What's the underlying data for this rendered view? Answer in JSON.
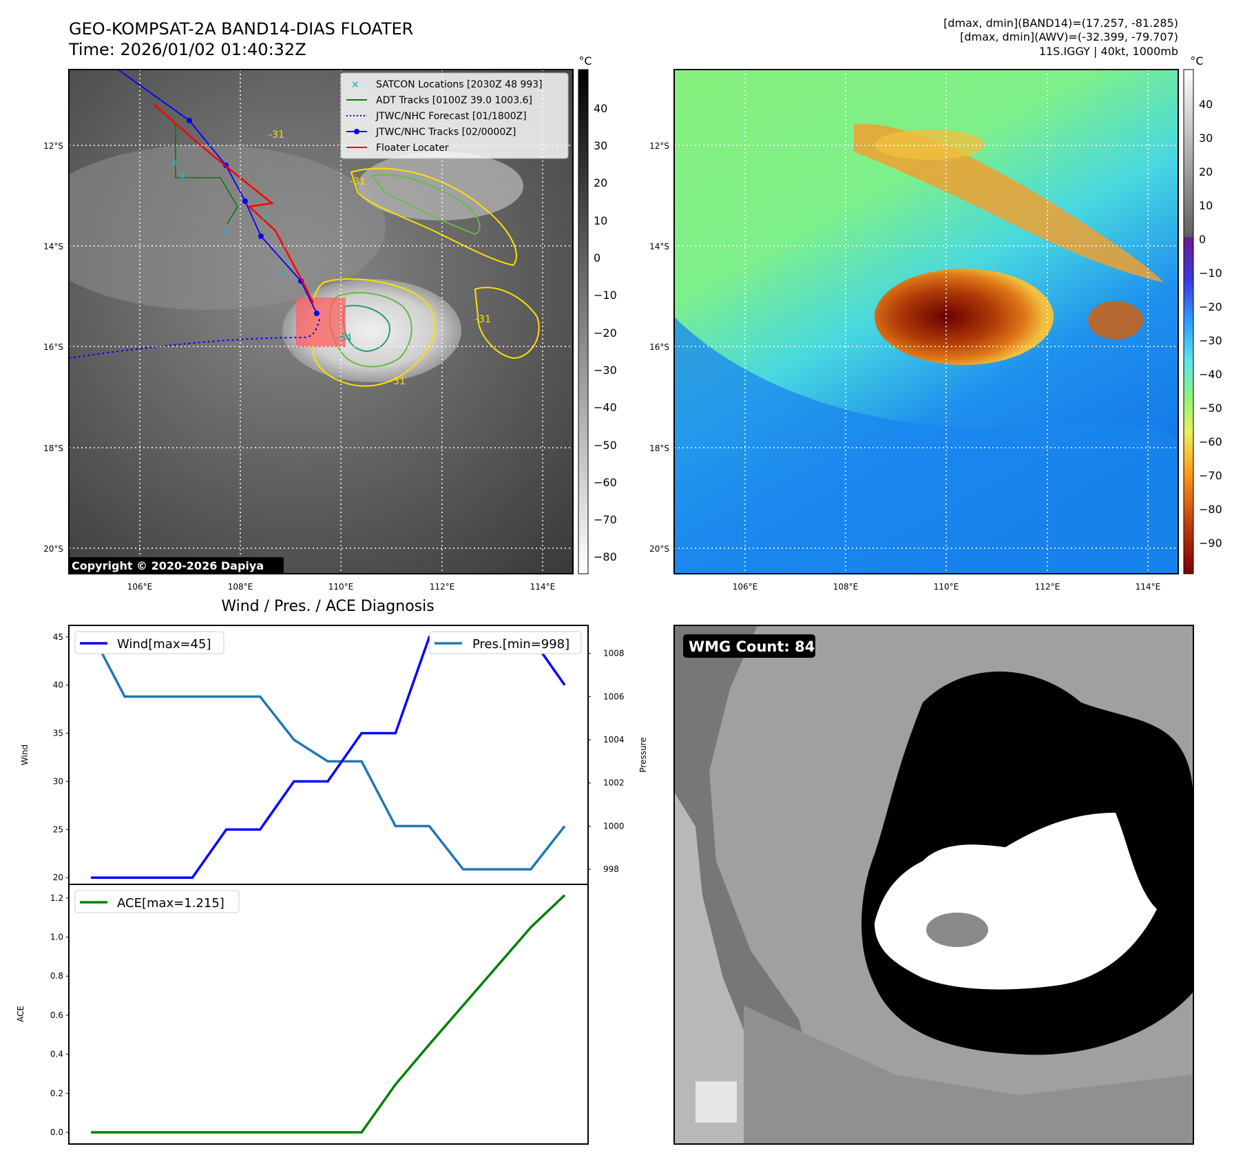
{
  "header": {
    "title_line1": "GEO-KOMPSAT-2A BAND14-DIAS FLOATER",
    "title_line2": "Time: 2026/01/02 01:40:32Z",
    "info_line1": "[dmax, dmin](BAND14)=(17.257, -81.285)",
    "info_line2": "[dmax, dmin](AWV)=(-32.399, -79.707)",
    "info_line3": "11S.IGGY | 40kt, 1000mb"
  },
  "ir_panel": {
    "copyright": "Copyright © 2020-2026 Dapiya",
    "unit": "°C",
    "colorbar_ticks": [
      "40",
      "30",
      "20",
      "10",
      "0",
      "−10",
      "−20",
      "−30",
      "−40",
      "−50",
      "−60",
      "−70",
      "−80"
    ],
    "lat_labels": [
      "12°S",
      "14°S",
      "16°S",
      "18°S",
      "20°S"
    ],
    "lon_labels": [
      "106°E",
      "108°E",
      "110°E",
      "112°E",
      "114°E"
    ],
    "contour_labels": [
      "-31",
      "-31",
      "-31",
      "-64",
      "-31"
    ],
    "legend": [
      {
        "label": "SATCON Locations [2030Z 48 993]",
        "color": "#17becf"
      },
      {
        "label": "ADT Tracks [0100Z 39.0 1003.6]",
        "color": "#008000"
      },
      {
        "label": "JTWC/NHC Forecast [01/1800Z]",
        "color": "#0000ff"
      },
      {
        "label": "JTWC/NHC Tracks [02/0000Z]",
        "color": "#0000ff"
      },
      {
        "label": "Floater Locater",
        "color": "#ff0000"
      }
    ]
  },
  "wv_panel": {
    "unit": "°C",
    "colorbar_ticks": [
      "40",
      "30",
      "20",
      "10",
      "0",
      "−10",
      "−20",
      "−30",
      "−40",
      "−50",
      "−60",
      "−70",
      "−80",
      "−90"
    ],
    "lat_labels": [
      "12°S",
      "14°S",
      "16°S",
      "18°S",
      "20°S"
    ],
    "lon_labels": [
      "106°E",
      "108°E",
      "110°E",
      "112°E",
      "114°E"
    ]
  },
  "diag": {
    "title": "Wind / Pres. / ACE Diagnosis",
    "wmg_label": "WMG Count: 84"
  },
  "chart_data": [
    {
      "type": "line",
      "title": "Wind / Pres. / ACE Diagnosis",
      "ylabel": "Wind",
      "y2label": "Pressure",
      "x": [
        0,
        1,
        2,
        3,
        4,
        5,
        6,
        7,
        8,
        9,
        10,
        11,
        12,
        13,
        14
      ],
      "series": [
        {
          "name": "Wind[max=45]",
          "axis": "left",
          "color": "#0000ff",
          "values": [
            20,
            20,
            20,
            20,
            25,
            25,
            30,
            30,
            35,
            35,
            45,
            45,
            45,
            45,
            40
          ]
        },
        {
          "name": "Pres.[min=998]",
          "axis": "right",
          "color": "#1f77b4",
          "values": [
            1009,
            1006,
            1006,
            1006,
            1006,
            1006,
            1004,
            1003,
            1003,
            1000,
            1000,
            998,
            998,
            998,
            1000
          ]
        }
      ],
      "ylim": [
        19.3,
        46.2
      ],
      "y2lim": [
        997.3,
        1009.3
      ],
      "yticks": [
        20,
        25,
        30,
        35,
        40,
        45
      ],
      "y2ticks": [
        998,
        1000,
        1002,
        1004,
        1006,
        1008
      ]
    },
    {
      "type": "line",
      "ylabel": "ACE",
      "x": [
        0,
        1,
        2,
        3,
        4,
        5,
        6,
        7,
        8,
        9,
        10,
        11,
        12,
        13,
        14
      ],
      "series": [
        {
          "name": "ACE[max=1.215]",
          "color": "#008000",
          "values": [
            0,
            0,
            0,
            0,
            0,
            0,
            0,
            0,
            0.0,
            0.245,
            0.45,
            0.65,
            0.85,
            1.05,
            1.215
          ]
        }
      ],
      "ylim": [
        -0.06,
        1.27
      ],
      "yticks": [
        0.0,
        0.2,
        0.4,
        0.6,
        0.8,
        1.0,
        1.2
      ]
    }
  ]
}
